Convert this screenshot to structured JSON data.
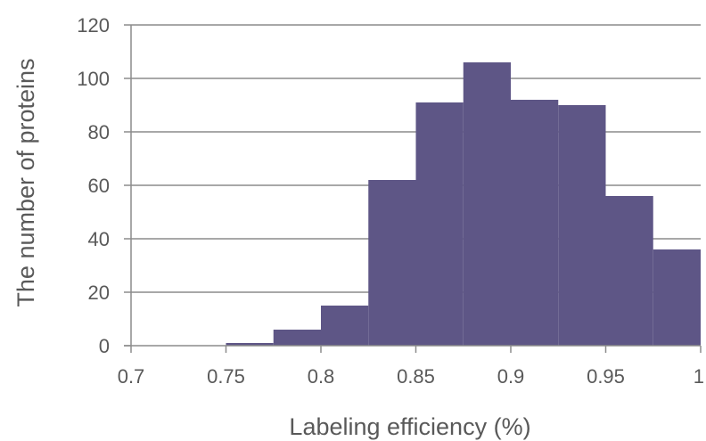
{
  "chart_data": {
    "type": "bar",
    "title": "",
    "xlabel": "Labeling efficiency (%)",
    "ylabel": "The number of proteins",
    "xlim": [
      0.7,
      1.0
    ],
    "ylim": [
      0,
      120
    ],
    "x_ticks": [
      "0.7",
      "0.75",
      "0.8",
      "0.85",
      "0.9",
      "0.95",
      "1"
    ],
    "y_ticks": [
      "0",
      "20",
      "40",
      "60",
      "80",
      "100",
      "120"
    ],
    "grid": true,
    "legend": "none",
    "bar_color": "#5e5686",
    "bins": [
      {
        "from": 0.75,
        "to": 0.775,
        "value": 1
      },
      {
        "from": 0.775,
        "to": 0.8,
        "value": 6
      },
      {
        "from": 0.8,
        "to": 0.825,
        "value": 15
      },
      {
        "from": 0.825,
        "to": 0.85,
        "value": 62
      },
      {
        "from": 0.85,
        "to": 0.875,
        "value": 91
      },
      {
        "from": 0.875,
        "to": 0.9,
        "value": 106
      },
      {
        "from": 0.9,
        "to": 0.925,
        "value": 92
      },
      {
        "from": 0.925,
        "to": 0.95,
        "value": 90
      },
      {
        "from": 0.95,
        "to": 0.975,
        "value": 56
      },
      {
        "from": 0.975,
        "to": 1.0,
        "value": 36
      }
    ]
  }
}
